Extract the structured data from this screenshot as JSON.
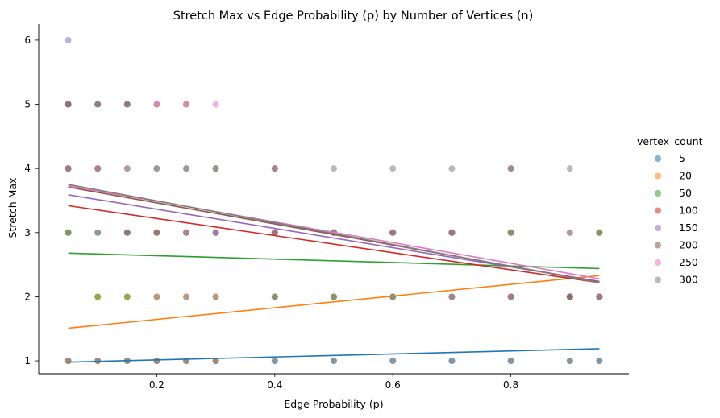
{
  "chart_data": {
    "type": "scatter",
    "title": "Stretch Max vs Edge Probability (p) by Number of Vertices (n)",
    "xlabel": "Edge Probability (p)",
    "ylabel": "Stretch Max",
    "xlim": [
      0.0,
      1.0
    ],
    "ylim": [
      0.8,
      6.25
    ],
    "xticks": [
      0.2,
      0.4,
      0.6,
      0.8
    ],
    "xtick_labels": [
      "0.2",
      "0.4",
      "0.6",
      "0.8"
    ],
    "yticks": [
      1,
      2,
      3,
      4,
      5,
      6
    ],
    "ytick_labels": [
      "1",
      "2",
      "3",
      "4",
      "5",
      "6"
    ],
    "grid": false,
    "legend_placement": "right",
    "legend_title": "vertex_count",
    "series": [
      {
        "name": "5",
        "color": "#1f77b4",
        "points": [
          [
            0.05,
            1
          ],
          [
            0.1,
            1
          ],
          [
            0.15,
            1
          ],
          [
            0.2,
            1
          ],
          [
            0.25,
            1
          ],
          [
            0.3,
            1
          ],
          [
            0.4,
            1
          ],
          [
            0.5,
            1
          ],
          [
            0.6,
            1
          ],
          [
            0.7,
            1
          ],
          [
            0.8,
            1
          ],
          [
            0.9,
            1
          ],
          [
            0.95,
            1
          ]
        ],
        "trend": [
          [
            0.05,
            0.98
          ],
          [
            0.95,
            1.19
          ]
        ]
      },
      {
        "name": "20",
        "color": "#ff7f0e",
        "points": [
          [
            0.05,
            1
          ],
          [
            0.1,
            1
          ],
          [
            0.15,
            1
          ],
          [
            0.2,
            1
          ],
          [
            0.25,
            1
          ],
          [
            0.3,
            1
          ],
          [
            0.05,
            3
          ],
          [
            0.1,
            2
          ],
          [
            0.15,
            2
          ],
          [
            0.2,
            2
          ],
          [
            0.25,
            2
          ],
          [
            0.3,
            2
          ],
          [
            0.4,
            2
          ],
          [
            0.5,
            2
          ],
          [
            0.6,
            2
          ],
          [
            0.7,
            2
          ],
          [
            0.8,
            2
          ],
          [
            0.9,
            2
          ],
          [
            0.95,
            2
          ],
          [
            0.95,
            3
          ],
          [
            0.4,
            3
          ],
          [
            0.5,
            3
          ],
          [
            0.6,
            3
          ],
          [
            0.7,
            3
          ],
          [
            0.8,
            3
          ]
        ],
        "trend": [
          [
            0.05,
            1.51
          ],
          [
            0.95,
            2.33
          ]
        ]
      },
      {
        "name": "50",
        "color": "#2ca02c",
        "points": [
          [
            0.1,
            2
          ],
          [
            0.15,
            2
          ],
          [
            0.05,
            3
          ],
          [
            0.1,
            3
          ],
          [
            0.15,
            3
          ],
          [
            0.2,
            3
          ],
          [
            0.05,
            4
          ],
          [
            0.4,
            2
          ],
          [
            0.5,
            2
          ],
          [
            0.6,
            2
          ],
          [
            0.7,
            3
          ],
          [
            0.8,
            3
          ],
          [
            0.9,
            2
          ],
          [
            0.95,
            2
          ],
          [
            0.95,
            3
          ]
        ],
        "trend": [
          [
            0.05,
            2.68
          ],
          [
            0.95,
            2.44
          ]
        ]
      },
      {
        "name": "100",
        "color": "#d62728",
        "points": [
          [
            0.05,
            4
          ],
          [
            0.1,
            4
          ],
          [
            0.15,
            3
          ],
          [
            0.2,
            3
          ],
          [
            0.25,
            3
          ],
          [
            0.3,
            3
          ],
          [
            0.4,
            3
          ],
          [
            0.5,
            3
          ],
          [
            0.6,
            3
          ],
          [
            0.7,
            3
          ],
          [
            0.8,
            2
          ],
          [
            0.9,
            2
          ],
          [
            0.95,
            2
          ],
          [
            0.05,
            5
          ]
        ],
        "trend": [
          [
            0.05,
            3.42
          ],
          [
            0.95,
            2.22
          ]
        ]
      },
      {
        "name": "150",
        "color": "#9467bd",
        "points": [
          [
            0.05,
            6
          ],
          [
            0.05,
            5
          ],
          [
            0.1,
            5
          ],
          [
            0.15,
            5
          ],
          [
            0.2,
            4
          ],
          [
            0.25,
            4
          ],
          [
            0.3,
            3
          ],
          [
            0.4,
            3
          ],
          [
            0.5,
            3
          ],
          [
            0.6,
            3
          ],
          [
            0.7,
            2
          ],
          [
            0.8,
            2
          ],
          [
            0.9,
            2
          ],
          [
            0.95,
            2
          ]
        ],
        "trend": [
          [
            0.05,
            3.59
          ],
          [
            0.95,
            2.24
          ]
        ]
      },
      {
        "name": "200",
        "color": "#8c564b",
        "points": [
          [
            0.05,
            5
          ],
          [
            0.1,
            5
          ],
          [
            0.15,
            5
          ],
          [
            0.2,
            5
          ],
          [
            0.25,
            5
          ],
          [
            0.3,
            4
          ],
          [
            0.4,
            4
          ],
          [
            0.5,
            3
          ],
          [
            0.6,
            3
          ],
          [
            0.7,
            3
          ],
          [
            0.8,
            4
          ],
          [
            0.9,
            2
          ],
          [
            0.95,
            2
          ]
        ],
        "trend": [
          [
            0.05,
            3.71
          ],
          [
            0.95,
            2.23
          ]
        ]
      },
      {
        "name": "250",
        "color": "#e377c2",
        "points": [
          [
            0.2,
            5
          ],
          [
            0.25,
            5
          ],
          [
            0.3,
            5
          ],
          [
            0.3,
            3
          ],
          [
            0.05,
            4
          ],
          [
            0.1,
            4
          ],
          [
            0.15,
            4
          ],
          [
            0.4,
            4
          ],
          [
            0.5,
            3
          ],
          [
            0.6,
            3
          ],
          [
            0.7,
            3
          ],
          [
            0.8,
            2
          ],
          [
            0.9,
            3
          ],
          [
            0.95,
            2
          ]
        ],
        "trend": [
          [
            0.05,
            3.73
          ],
          [
            0.95,
            2.28
          ]
        ]
      },
      {
        "name": "300",
        "color": "#7f7f7f",
        "points": [
          [
            0.05,
            1
          ],
          [
            0.1,
            1
          ],
          [
            0.15,
            1
          ],
          [
            0.2,
            1
          ],
          [
            0.25,
            1
          ],
          [
            0.3,
            1
          ],
          [
            0.4,
            1
          ],
          [
            0.5,
            1
          ],
          [
            0.6,
            1
          ],
          [
            0.7,
            1
          ],
          [
            0.8,
            1
          ],
          [
            0.9,
            1
          ],
          [
            0.95,
            1
          ],
          [
            0.05,
            3
          ],
          [
            0.1,
            3
          ],
          [
            0.15,
            3
          ],
          [
            0.2,
            3
          ],
          [
            0.25,
            3
          ],
          [
            0.3,
            3
          ],
          [
            0.4,
            3
          ],
          [
            0.5,
            3
          ],
          [
            0.6,
            3
          ],
          [
            0.7,
            3
          ],
          [
            0.8,
            3
          ],
          [
            0.9,
            3
          ],
          [
            0.95,
            3
          ],
          [
            0.05,
            4
          ],
          [
            0.1,
            4
          ],
          [
            0.15,
            4
          ],
          [
            0.2,
            4
          ],
          [
            0.25,
            4
          ],
          [
            0.3,
            4
          ],
          [
            0.4,
            4
          ],
          [
            0.5,
            4
          ],
          [
            0.6,
            4
          ],
          [
            0.7,
            4
          ],
          [
            0.8,
            4
          ],
          [
            0.9,
            4
          ],
          [
            0.05,
            5
          ],
          [
            0.1,
            5
          ],
          [
            0.15,
            5
          ],
          [
            0.2,
            2
          ],
          [
            0.25,
            2
          ],
          [
            0.3,
            2
          ],
          [
            0.4,
            2
          ],
          [
            0.5,
            2
          ],
          [
            0.6,
            2
          ],
          [
            0.7,
            2
          ],
          [
            0.8,
            2
          ],
          [
            0.9,
            2
          ],
          [
            0.95,
            2
          ]
        ],
        "trend": [
          [
            0.05,
            3.75
          ],
          [
            0.95,
            2.22
          ]
        ]
      }
    ]
  }
}
